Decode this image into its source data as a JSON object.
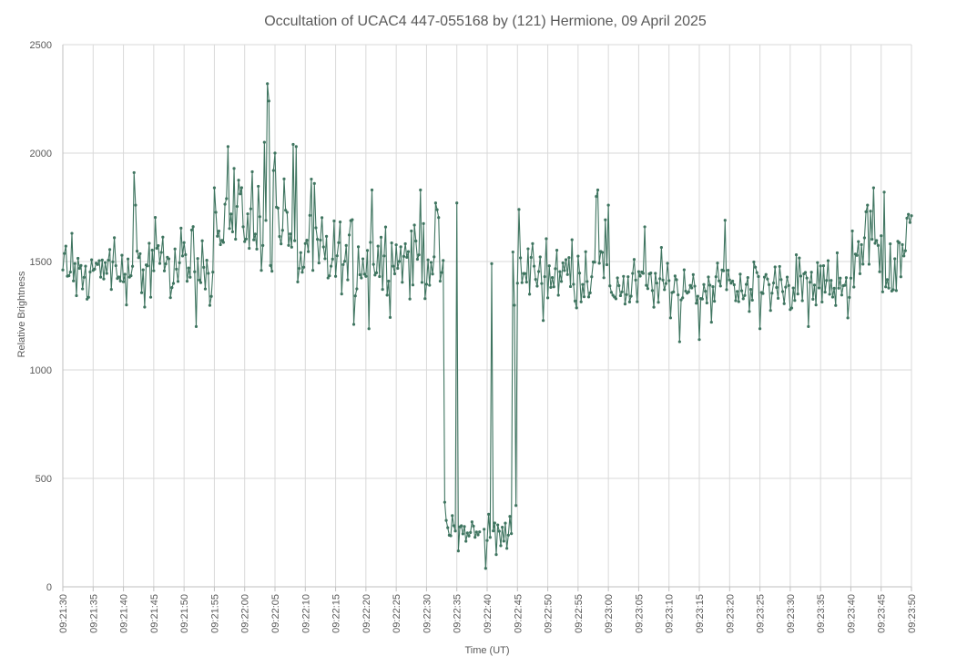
{
  "chart_data": {
    "type": "line",
    "title": "Occultation of UCAC4 447-055168 by (121) Hermione, 09 April 2025",
    "xlabel": "Time (UT)",
    "ylabel": "Relative  Brightness",
    "ylim": [
      0,
      2500
    ],
    "yticks": [
      "0",
      "500",
      "1000",
      "1500",
      "2000",
      "2500"
    ],
    "xlim": [
      "09:21:30",
      "09:23:50"
    ],
    "xticks": [
      "09:21:30",
      "09:21:35",
      "09:21:40",
      "09:21:45",
      "09:21:50",
      "09:21:55",
      "09:22:00",
      "09:22:05",
      "09:22:10",
      "09:22:15",
      "09:22:20",
      "09:22:25",
      "09:22:30",
      "09:22:35",
      "09:22:40",
      "09:22:45",
      "09:22:50",
      "09:22:55",
      "09:23:00",
      "09:23:05",
      "09:23:10",
      "09:23:15",
      "09:23:20",
      "09:23:25",
      "09:23:30",
      "09:23:35",
      "09:23:40",
      "09:23:45",
      "09:23:50"
    ],
    "grid": true,
    "legend": "none",
    "series_color": "#3f7560",
    "x_start": "09:21:30",
    "x_step_seconds": 0.25,
    "gap": {
      "from": "09:22:38.75",
      "to": "09:22:39.50"
    },
    "segments": [
      {
        "from": "09:21:30",
        "to": "09:21:40",
        "level": 1450,
        "noise": 75,
        "spikes": [
          [
            1.5,
            1630
          ],
          [
            8.5,
            1610
          ]
        ]
      },
      {
        "from": "09:21:40",
        "to": "09:21:55",
        "level": 1480,
        "noise": 110,
        "spikes": [
          [
            11.75,
            1910
          ],
          [
            12,
            1760
          ],
          [
            13.5,
            1290
          ],
          [
            22,
            1200
          ],
          [
            25,
            1840
          ],
          [
            27.25,
            2030
          ]
        ]
      },
      {
        "from": "09:21:55",
        "to": "09:22:07",
        "level": 1700,
        "noise": 150,
        "spikes": [
          [
            31.5,
            1600
          ],
          [
            33.25,
            2050
          ],
          [
            33.75,
            2320
          ],
          [
            34,
            2240
          ],
          [
            35,
            2000
          ],
          [
            38,
            2040
          ],
          [
            38.5,
            2030
          ],
          [
            41,
            1880
          ]
        ]
      },
      {
        "from": "09:22:07",
        "to": "09:22:33",
        "level": 1520,
        "noise": 110,
        "spikes": [
          [
            41.5,
            1860
          ],
          [
            48,
            1210
          ],
          [
            50.5,
            1190
          ],
          [
            51,
            1830
          ],
          [
            59,
            1830
          ],
          [
            61.5,
            1770
          ],
          [
            65,
            1770
          ],
          [
            70.75,
            1490
          ]
        ]
      },
      {
        "from": "09:22:33",
        "to": "09:22:44",
        "level": 250,
        "noise": 55,
        "spikes": [
          [
            63,
            390
          ],
          [
            69.75,
            85
          ],
          [
            74.75,
            375
          ]
        ]
      },
      {
        "from": "09:22:44",
        "to": "09:23:00",
        "level": 1450,
        "noise": 110,
        "spikes": [
          [
            75,
            1400
          ],
          [
            75.25,
            1740
          ],
          [
            88,
            1800
          ],
          [
            88.25,
            1830
          ],
          [
            90,
            1760
          ]
        ]
      },
      {
        "from": "09:23:00",
        "to": "09:23:40",
        "level": 1390,
        "noise": 85,
        "spikes": [
          [
            96,
            1660
          ],
          [
            101.75,
            1130
          ],
          [
            105,
            1140
          ],
          [
            109.25,
            1690
          ],
          [
            115,
            1190
          ],
          [
            123,
            1200
          ],
          [
            127.75,
            1540
          ]
        ]
      },
      {
        "from": "09:23:40",
        "to": "09:23:50",
        "level": 1530,
        "noise": 140,
        "spikes": [
          [
            129.5,
            1240
          ],
          [
            132.75,
            1760
          ],
          [
            133.75,
            1840
          ],
          [
            135.5,
            1820
          ],
          [
            137,
            1370
          ],
          [
            139.75,
            1680
          ]
        ]
      }
    ]
  }
}
